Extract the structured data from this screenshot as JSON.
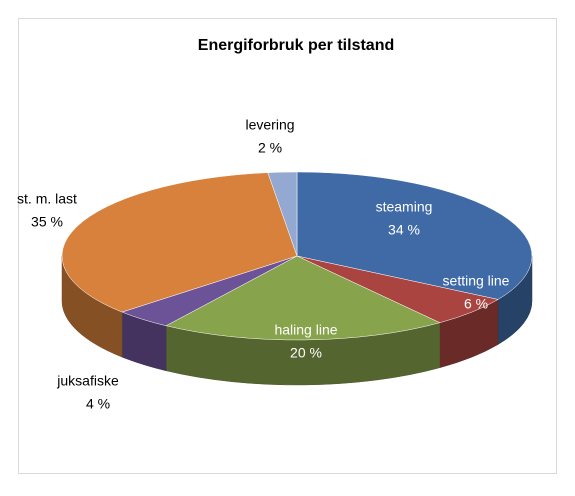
{
  "chart_data": {
    "type": "pie",
    "title": "Energiforbruk per tilstand",
    "categories": [
      "steaming",
      "setting line",
      "haling line",
      "juksafiske",
      "st. m. last",
      "levering"
    ],
    "values": [
      34,
      6,
      20,
      4,
      35,
      2
    ],
    "value_labels": [
      "34 %",
      "6 %",
      "20 %",
      "4 %",
      "35 %",
      "2 %"
    ],
    "colors": [
      "#3f6aa6",
      "#aa4441",
      "#87a34b",
      "#6c5398",
      "#d8813c",
      "#94a9d2"
    ],
    "start_angle": 0,
    "direction": "clockwise",
    "three_d": true
  }
}
